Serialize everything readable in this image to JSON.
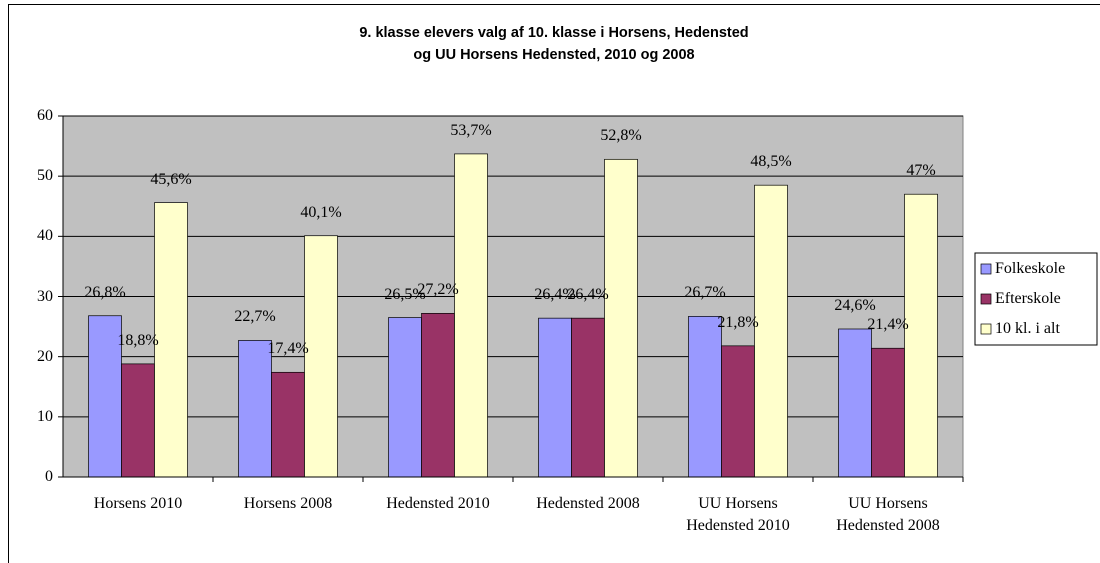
{
  "chart_data": {
    "type": "bar",
    "title": "9. klasse elevers valg af 10. klasse i Horsens, Hedensted\nog UU Horsens Hedensted, 2010 og 2008",
    "categories": [
      "Horsens 2010",
      "Horsens 2008",
      "Hedensted 2010",
      "Hedensted 2008",
      "UU Horsens\nHedensted 2010",
      "UU Horsens\nHedensted 2008"
    ],
    "series": [
      {
        "name": "Folkeskole",
        "color": "#9999ff",
        "values": [
          26.8,
          22.7,
          26.5,
          26.4,
          26.7,
          24.6
        ],
        "value_labels": [
          "26,8%",
          "22,7%",
          "26,5%",
          "26,4%",
          "26,7%",
          "24,6%"
        ]
      },
      {
        "name": "Efterskole",
        "color": "#993366",
        "values": [
          18.8,
          17.4,
          27.2,
          26.4,
          21.8,
          21.4
        ],
        "value_labels": [
          "18,8%",
          "17,4%",
          "27,2%",
          "26,4%",
          "21,8%",
          "21,4%"
        ]
      },
      {
        "name": "10 kl. i alt",
        "color": "#ffffcc",
        "values": [
          45.6,
          40.1,
          53.7,
          52.8,
          48.5,
          47
        ],
        "value_labels": [
          "45,6%",
          "40,1%",
          "53,7%",
          "52,8%",
          "48,5%",
          "47%"
        ]
      }
    ],
    "ylim": [
      0,
      60
    ],
    "yticks": [
      0,
      10,
      20,
      30,
      40,
      50,
      60
    ],
    "grid": true,
    "legend": "right",
    "plot_background": "#c0c0c0"
  }
}
